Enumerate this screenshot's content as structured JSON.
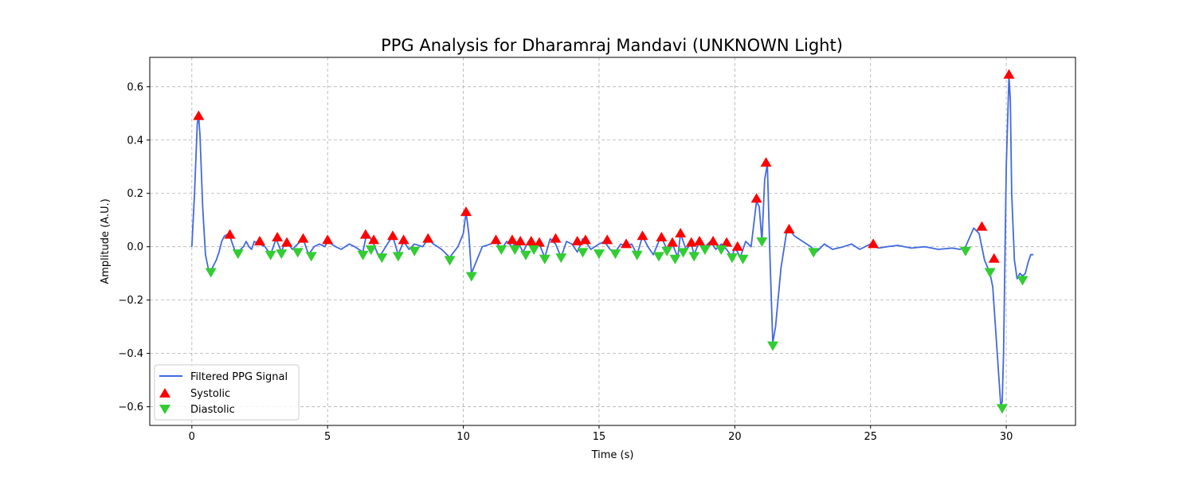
{
  "chart_data": {
    "type": "line",
    "title": "PPG Analysis for Dharamraj Mandavi (UNKNOWN Light)",
    "xlabel": "Time (s)",
    "ylabel": "Amplitude (A.U.)",
    "xlim": [
      -1.55,
      32.55
    ],
    "ylim": [
      -0.67,
      0.71
    ],
    "xticks": [
      0,
      5,
      10,
      15,
      20,
      25,
      30
    ],
    "yticks": [
      -0.6,
      -0.4,
      -0.2,
      0.0,
      0.2,
      0.4,
      0.6
    ],
    "xtick_labels": [
      "0",
      "5",
      "10",
      "15",
      "20",
      "25",
      "30"
    ],
    "ytick_labels": [
      "−0.6",
      "−0.4",
      "−0.2",
      "0.0",
      "0.2",
      "0.4",
      "0.6"
    ],
    "grid": true,
    "legend_position": "lower-left",
    "series": [
      {
        "name": "Filtered PPG Signal",
        "kind": "line",
        "color": "#4169e1",
        "x": [
          0.0,
          0.1,
          0.2,
          0.25,
          0.3,
          0.4,
          0.5,
          0.6,
          0.7,
          0.8,
          0.9,
          1.0,
          1.1,
          1.2,
          1.3,
          1.4,
          1.5,
          1.6,
          1.7,
          1.9,
          2.0,
          2.1,
          2.2,
          2.3,
          2.5,
          2.7,
          2.9,
          3.1,
          3.3,
          3.4,
          3.5,
          3.7,
          3.9,
          4.1,
          4.3,
          4.5,
          4.7,
          4.9,
          5.0,
          5.3,
          5.5,
          5.8,
          6.0,
          6.3,
          6.4,
          6.5,
          6.7,
          6.9,
          7.2,
          7.4,
          7.6,
          7.8,
          8.0,
          8.2,
          8.5,
          8.7,
          8.9,
          9.2,
          9.5,
          9.8,
          10.0,
          10.1,
          10.2,
          10.3,
          10.5,
          10.7,
          11.0,
          11.2,
          11.4,
          11.6,
          11.8,
          12.0,
          12.2,
          12.4,
          12.6,
          12.8,
          13.0,
          13.2,
          13.4,
          13.6,
          13.8,
          14.0,
          14.2,
          14.4,
          14.5,
          14.7,
          15.0,
          15.2,
          15.4,
          15.6,
          15.8,
          16.0,
          16.2,
          16.4,
          16.6,
          16.8,
          17.0,
          17.2,
          17.3,
          17.5,
          17.7,
          17.9,
          18.0,
          18.2,
          18.4,
          18.5,
          18.7,
          18.9,
          19.1,
          19.3,
          19.5,
          19.7,
          19.9,
          20.0,
          20.2,
          20.4,
          20.6,
          20.8,
          20.9,
          21.0,
          21.1,
          21.2,
          21.3,
          21.4,
          21.5,
          21.7,
          21.9,
          22.0,
          22.2,
          22.5,
          22.8,
          23.0,
          23.3,
          23.6,
          24.0,
          24.3,
          24.6,
          25.0,
          25.3,
          25.6,
          26.0,
          26.5,
          27.0,
          27.5,
          28.0,
          28.3,
          28.5,
          28.8,
          29.0,
          29.2,
          29.4,
          29.5,
          29.6,
          29.8,
          29.85,
          29.9,
          30.0,
          30.1,
          30.15,
          30.2,
          30.3,
          30.4,
          30.5,
          30.6,
          30.7,
          30.8,
          30.9,
          31.0
        ],
        "y": [
          0.0,
          0.2,
          0.46,
          0.49,
          0.42,
          0.15,
          -0.03,
          -0.08,
          -0.09,
          -0.07,
          -0.05,
          -0.02,
          0.02,
          0.04,
          0.045,
          0.04,
          0.01,
          -0.02,
          -0.02,
          0.0,
          0.02,
          0.0,
          -0.01,
          0.02,
          0.01,
          0.0,
          -0.03,
          0.03,
          -0.02,
          0.01,
          0.02,
          -0.01,
          0.01,
          0.03,
          -0.03,
          0.0,
          0.01,
          0.0,
          0.02,
          0.0,
          -0.01,
          0.01,
          0.0,
          -0.02,
          0.03,
          0.045,
          0.01,
          -0.04,
          0.01,
          0.04,
          -0.03,
          0.02,
          -0.01,
          0.01,
          0.0,
          0.03,
          0.01,
          -0.01,
          -0.04,
          0.0,
          0.05,
          0.13,
          0.05,
          -0.1,
          -0.05,
          0.0,
          0.01,
          0.02,
          -0.01,
          0.02,
          0.0,
          0.02,
          -0.02,
          0.02,
          -0.01,
          0.01,
          -0.04,
          0.03,
          0.01,
          -0.04,
          0.02,
          0.01,
          -0.02,
          0.03,
          0.02,
          -0.01,
          0.01,
          0.02,
          -0.01,
          -0.02,
          0.01,
          0.0,
          0.01,
          -0.03,
          0.04,
          0.0,
          -0.03,
          0.02,
          0.035,
          -0.01,
          0.01,
          -0.04,
          0.05,
          -0.01,
          0.01,
          -0.03,
          0.02,
          0.0,
          0.02,
          -0.01,
          0.01,
          -0.01,
          -0.04,
          0.0,
          -0.04,
          0.02,
          0.0,
          0.17,
          0.15,
          0.02,
          0.25,
          0.31,
          -0.05,
          -0.36,
          -0.3,
          -0.08,
          0.05,
          0.065,
          0.04,
          0.02,
          0.0,
          -0.02,
          0.01,
          -0.01,
          0.0,
          0.01,
          -0.01,
          0.01,
          -0.005,
          0.0,
          0.005,
          -0.005,
          0.0,
          -0.01,
          -0.005,
          -0.01,
          0.0,
          0.07,
          0.05,
          -0.05,
          -0.1,
          -0.15,
          -0.3,
          -0.6,
          -0.58,
          -0.4,
          0.3,
          0.64,
          0.55,
          0.2,
          -0.05,
          -0.12,
          -0.1,
          -0.11,
          -0.1,
          -0.06,
          -0.03,
          -0.03
        ]
      },
      {
        "name": "Systolic",
        "kind": "marker",
        "marker": "triangle-up",
        "color": "#ff0000",
        "x": [
          0.25,
          1.4,
          2.5,
          3.15,
          3.5,
          4.1,
          5.0,
          6.4,
          6.7,
          7.4,
          7.8,
          8.7,
          10.1,
          11.2,
          11.8,
          12.1,
          12.5,
          12.8,
          13.4,
          14.2,
          14.5,
          15.3,
          16.0,
          16.6,
          17.3,
          17.7,
          18.0,
          18.4,
          18.7,
          19.2,
          19.7,
          20.1,
          20.8,
          21.15,
          22.0,
          25.1,
          29.1,
          29.55,
          30.1
        ],
        "y": [
          0.49,
          0.045,
          0.02,
          0.035,
          0.015,
          0.03,
          0.025,
          0.045,
          0.025,
          0.04,
          0.025,
          0.03,
          0.13,
          0.025,
          0.025,
          0.02,
          0.02,
          0.015,
          0.03,
          0.02,
          0.025,
          0.025,
          0.01,
          0.04,
          0.035,
          0.015,
          0.05,
          0.015,
          0.02,
          0.02,
          0.015,
          0.0,
          0.18,
          0.315,
          0.065,
          0.01,
          0.075,
          -0.045,
          0.645
        ]
      },
      {
        "name": "Diastolic",
        "kind": "marker",
        "marker": "triangle-down",
        "color": "#32cd32",
        "x": [
          0.7,
          1.7,
          2.9,
          3.3,
          3.9,
          4.4,
          6.3,
          6.6,
          7.0,
          7.6,
          8.2,
          9.5,
          10.3,
          11.4,
          11.9,
          12.3,
          12.6,
          13.0,
          13.6,
          14.4,
          15.0,
          15.6,
          16.4,
          17.2,
          17.5,
          17.8,
          18.1,
          18.5,
          18.9,
          19.5,
          19.9,
          20.3,
          21.0,
          21.4,
          22.9,
          28.5,
          29.4,
          29.85,
          30.6
        ],
        "y": [
          -0.095,
          -0.025,
          -0.03,
          -0.025,
          -0.02,
          -0.035,
          -0.03,
          -0.01,
          -0.04,
          -0.035,
          -0.015,
          -0.05,
          -0.11,
          -0.01,
          -0.01,
          -0.03,
          -0.01,
          -0.045,
          -0.04,
          -0.02,
          -0.025,
          -0.025,
          -0.03,
          -0.035,
          -0.015,
          -0.045,
          -0.02,
          -0.035,
          -0.01,
          -0.01,
          -0.04,
          -0.045,
          0.02,
          -0.37,
          -0.02,
          -0.015,
          -0.095,
          -0.605,
          -0.125
        ]
      }
    ]
  }
}
